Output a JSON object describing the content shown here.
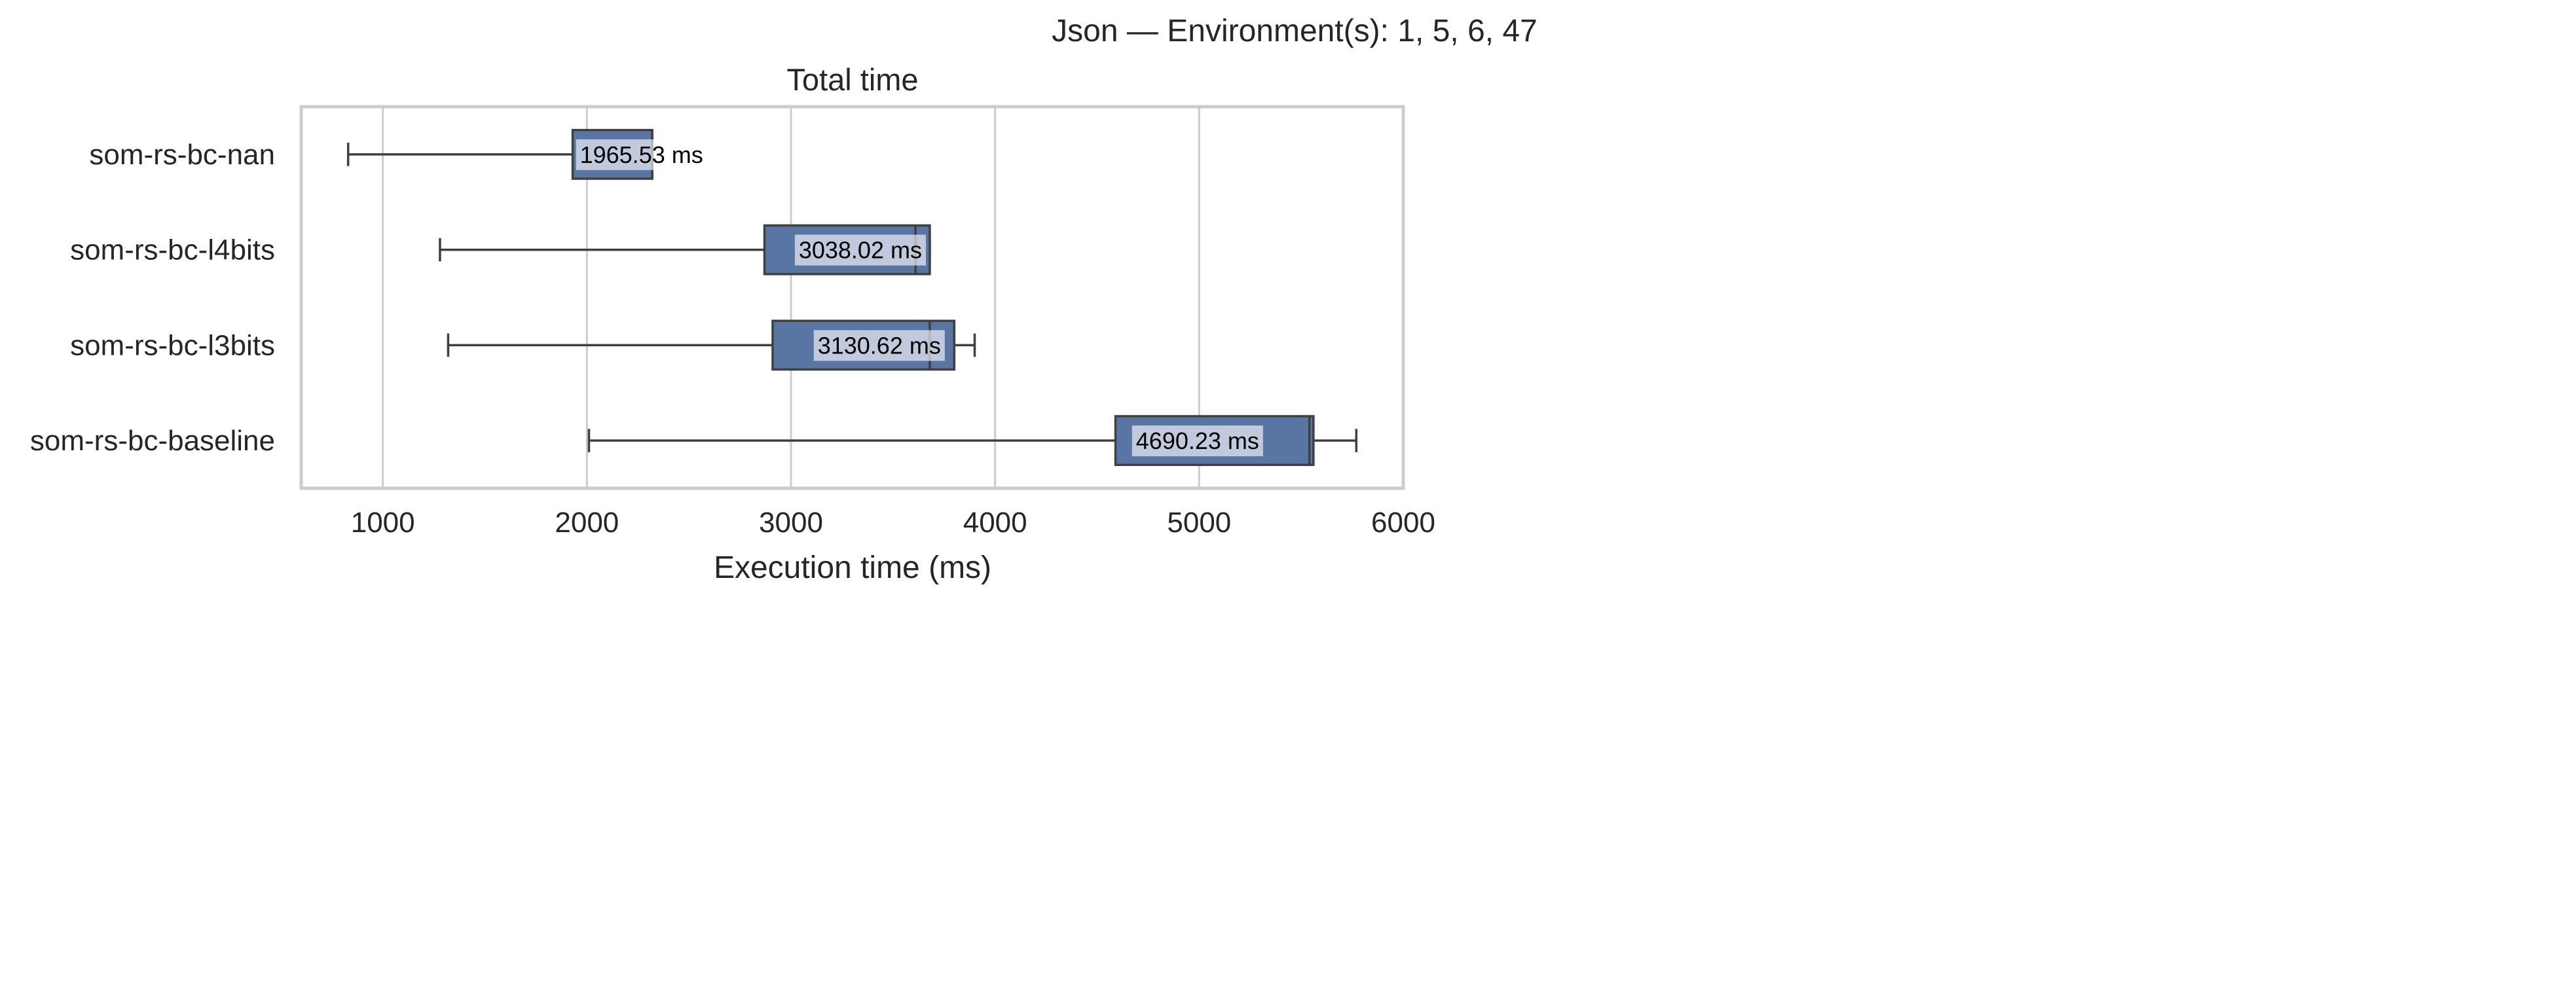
{
  "figure": {
    "suptitle": "Json — Environment(s): 1, 5, 6, 47"
  },
  "chart_data": {
    "type": "box",
    "orientation": "horizontal",
    "title": "Total time",
    "xlabel": "Execution time (ms)",
    "ylabel": "",
    "xlim": [
      600,
      6000
    ],
    "xticks": [
      1000,
      2000,
      3000,
      4000,
      5000,
      6000
    ],
    "grid": true,
    "box_color": "#5975a4",
    "unit_suffix": " ms",
    "series": [
      {
        "name": "som-rs-bc-nan",
        "whisker_low": 830,
        "q1": 1930,
        "median": 2320,
        "q3": 2320,
        "whisker_high": 2320,
        "label_value": "1965.53"
      },
      {
        "name": "som-rs-bc-l4bits",
        "whisker_low": 1280,
        "q1": 2870,
        "median": 3610,
        "q3": 3680,
        "whisker_high": 3680,
        "label_value": "3038.02"
      },
      {
        "name": "som-rs-bc-l3bits",
        "whisker_low": 1320,
        "q1": 2910,
        "median": 3680,
        "q3": 3800,
        "whisker_high": 3900,
        "label_value": "3130.62"
      },
      {
        "name": "som-rs-bc-baseline",
        "whisker_low": 2010,
        "q1": 4590,
        "median": 5540,
        "q3": 5560,
        "whisker_high": 5770,
        "label_value": "4690.23"
      }
    ]
  }
}
